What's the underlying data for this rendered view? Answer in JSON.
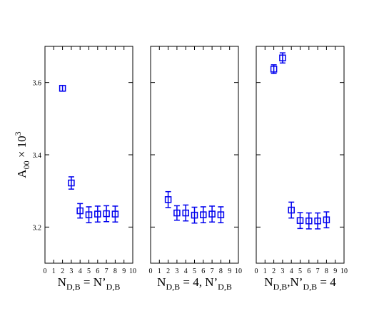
{
  "chart_data": [
    {
      "type": "scatter",
      "color": "#0000ee",
      "ylabel": [
        {
          "t": "A"
        },
        {
          "sub": "00"
        },
        {
          "t": " × 10"
        },
        {
          "sup": "3"
        }
      ],
      "xlabel": [
        {
          "t": "N"
        },
        {
          "sub": "D,B"
        },
        {
          "t": " = N’"
        },
        {
          "sub": "D,B"
        }
      ],
      "x": [
        2,
        3,
        4,
        5,
        6,
        7,
        8
      ],
      "values": [
        3.584,
        3.322,
        3.245,
        3.234,
        3.236,
        3.237,
        3.236
      ],
      "errors": [
        0.008,
        0.017,
        0.02,
        0.022,
        0.022,
        0.022,
        0.022
      ],
      "xlim": [
        0,
        10
      ],
      "xticks": [
        0,
        1,
        2,
        3,
        4,
        5,
        6,
        7,
        8,
        9,
        10
      ],
      "ylim": [
        3.1,
        3.7
      ],
      "yticks": [
        3.2,
        3.4,
        3.6
      ],
      "ytick_labels": true
    },
    {
      "type": "scatter",
      "color": "#0000ee",
      "xlabel": [
        {
          "t": "N"
        },
        {
          "sub": "D,B"
        },
        {
          "t": " = 4, N’"
        },
        {
          "sub": "D,B"
        }
      ],
      "x": [
        2,
        3,
        4,
        5,
        6,
        7,
        8
      ],
      "values": [
        3.276,
        3.239,
        3.239,
        3.233,
        3.234,
        3.236,
        3.234
      ],
      "errors": [
        0.022,
        0.02,
        0.022,
        0.022,
        0.022,
        0.022,
        0.022
      ],
      "xlim": [
        0,
        10
      ],
      "xticks": [
        0,
        1,
        2,
        3,
        4,
        5,
        6,
        7,
        8,
        9,
        10
      ],
      "ylim": [
        3.1,
        3.7
      ],
      "yticks": [
        3.2,
        3.4,
        3.6
      ],
      "ytick_labels": false
    },
    {
      "type": "scatter",
      "color": "#0000ee",
      "xlabel": [
        {
          "t": "N"
        },
        {
          "sub": "D,B"
        },
        {
          "t": ",N’"
        },
        {
          "sub": "D,B"
        },
        {
          "t": " = 4"
        }
      ],
      "x": [
        2,
        3,
        4,
        5,
        6,
        7,
        8
      ],
      "values": [
        3.637,
        3.668,
        3.247,
        3.218,
        3.217,
        3.217,
        3.22
      ],
      "errors": [
        0.012,
        0.014,
        0.022,
        0.022,
        0.022,
        0.022,
        0.022
      ],
      "xlim": [
        0,
        10
      ],
      "xticks": [
        0,
        1,
        2,
        3,
        4,
        5,
        6,
        7,
        8,
        9,
        10
      ],
      "ylim": [
        3.1,
        3.7
      ],
      "yticks": [
        3.2,
        3.4,
        3.6
      ],
      "ytick_labels": false
    }
  ]
}
